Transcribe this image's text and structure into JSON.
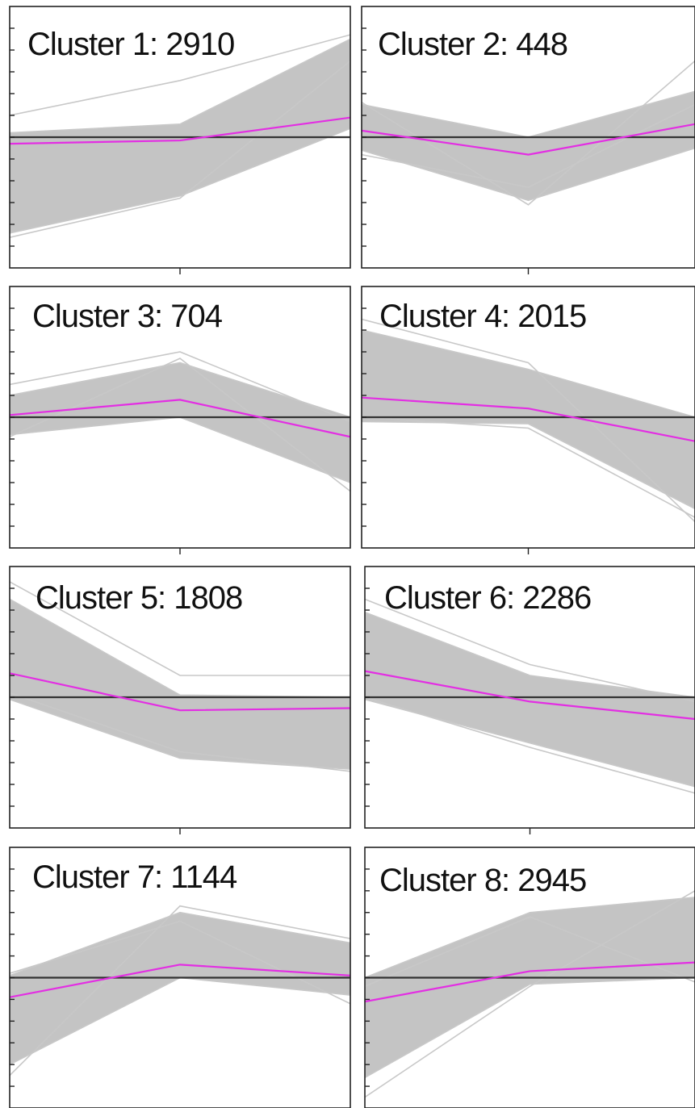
{
  "chart_data": [
    {
      "type": "line",
      "title": "Cluster 1: 2910",
      "x": [
        1,
        2,
        3
      ],
      "mean": [
        -0.3,
        -0.15,
        0.9
      ],
      "band_low": [
        -4.4,
        -2.7,
        0.4
      ],
      "band_high": [
        0.2,
        0.6,
        4.5
      ],
      "outliers": [
        [
          1.0,
          2.6,
          4.7
        ],
        [
          -4.6,
          -2.8,
          3.5
        ]
      ],
      "ylim": [
        -6,
        6
      ],
      "colors": {
        "mean": "#e32ee3",
        "band": "#c4c4c4",
        "zero": "#333333"
      }
    },
    {
      "type": "line",
      "title": "Cluster 2: 448",
      "x": [
        1,
        2,
        3
      ],
      "mean": [
        0.3,
        -0.8,
        0.6
      ],
      "band_low": [
        -0.6,
        -2.9,
        -0.5
      ],
      "band_high": [
        1.5,
        0.0,
        2.1
      ],
      "outliers": [
        [
          1.6,
          -3.1,
          3.5
        ],
        [
          -0.8,
          -2.3,
          1.5
        ]
      ],
      "ylim": [
        -6,
        6
      ],
      "colors": {
        "mean": "#e32ee3",
        "band": "#c4c4c4",
        "zero": "#333333"
      }
    },
    {
      "type": "line",
      "title": "Cluster 3: 704",
      "x": [
        1,
        2,
        3
      ],
      "mean": [
        0.1,
        0.8,
        -0.9
      ],
      "band_low": [
        -0.8,
        0.0,
        -3.0
      ],
      "band_high": [
        1.0,
        2.5,
        0.0
      ],
      "outliers": [
        [
          1.5,
          3.0,
          -0.2
        ],
        [
          -0.9,
          2.7,
          -3.4
        ]
      ],
      "ylim": [
        -6,
        6
      ],
      "colors": {
        "mean": "#e32ee3",
        "band": "#c4c4c4",
        "zero": "#333333"
      }
    },
    {
      "type": "line",
      "title": "Cluster 4: 2015",
      "x": [
        1,
        2,
        3
      ],
      "mean": [
        0.9,
        0.4,
        -1.1
      ],
      "band_low": [
        -0.2,
        -0.3,
        -4.2
      ],
      "band_high": [
        4.0,
        2.2,
        0.0
      ],
      "outliers": [
        [
          4.5,
          2.5,
          -4.8
        ],
        [
          0.0,
          -0.5,
          -4.6
        ]
      ],
      "ylim": [
        -6,
        6
      ],
      "colors": {
        "mean": "#e32ee3",
        "band": "#c4c4c4",
        "zero": "#333333"
      }
    },
    {
      "type": "line",
      "title": "Cluster 5: 1808",
      "x": [
        1,
        2,
        3
      ],
      "mean": [
        1.1,
        -0.6,
        -0.5
      ],
      "band_low": [
        -0.1,
        -2.8,
        -3.3
      ],
      "band_high": [
        4.5,
        0.1,
        0.0
      ],
      "outliers": [
        [
          5.3,
          1.0,
          1.0
        ],
        [
          0.2,
          -2.5,
          -3.4
        ]
      ],
      "ylim": [
        -6,
        6
      ],
      "colors": {
        "mean": "#e32ee3",
        "band": "#c4c4c4",
        "zero": "#333333"
      }
    },
    {
      "type": "line",
      "title": "Cluster 6: 2286",
      "x": [
        1,
        2,
        3
      ],
      "mean": [
        1.2,
        -0.2,
        -1.0
      ],
      "band_low": [
        -0.1,
        -2.1,
        -4.1
      ],
      "band_high": [
        3.9,
        1.0,
        0.0
      ],
      "outliers": [
        [
          4.5,
          1.5,
          -0.2
        ],
        [
          0.0,
          -2.3,
          -4.4
        ]
      ],
      "ylim": [
        -6,
        6
      ],
      "colors": {
        "mean": "#e32ee3",
        "band": "#c4c4c4",
        "zero": "#333333"
      }
    },
    {
      "type": "line",
      "title": "Cluster 7: 1144",
      "x": [
        1,
        2,
        3
      ],
      "mean": [
        -0.9,
        0.6,
        0.1
      ],
      "band_low": [
        -4.0,
        0.0,
        -0.8
      ],
      "band_high": [
        0.1,
        3.0,
        1.6
      ],
      "outliers": [
        [
          -4.5,
          3.3,
          1.8
        ],
        [
          0.2,
          2.6,
          -1.2
        ]
      ],
      "ylim": [
        -6,
        6
      ],
      "colors": {
        "mean": "#e32ee3",
        "band": "#c4c4c4",
        "zero": "#333333"
      }
    },
    {
      "type": "line",
      "title": "Cluster 8: 2945",
      "x": [
        1,
        2,
        3
      ],
      "mean": [
        -1.1,
        0.3,
        0.7
      ],
      "band_low": [
        -4.6,
        -0.3,
        0.0
      ],
      "band_high": [
        0.0,
        3.0,
        3.7
      ],
      "outliers": [
        [
          -5.5,
          -0.4,
          4.0
        ],
        [
          -0.4,
          2.8,
          -0.2
        ]
      ],
      "ylim": [
        -6,
        6
      ],
      "colors": {
        "mean": "#e32ee3",
        "band": "#c4c4c4",
        "zero": "#333333"
      }
    }
  ]
}
